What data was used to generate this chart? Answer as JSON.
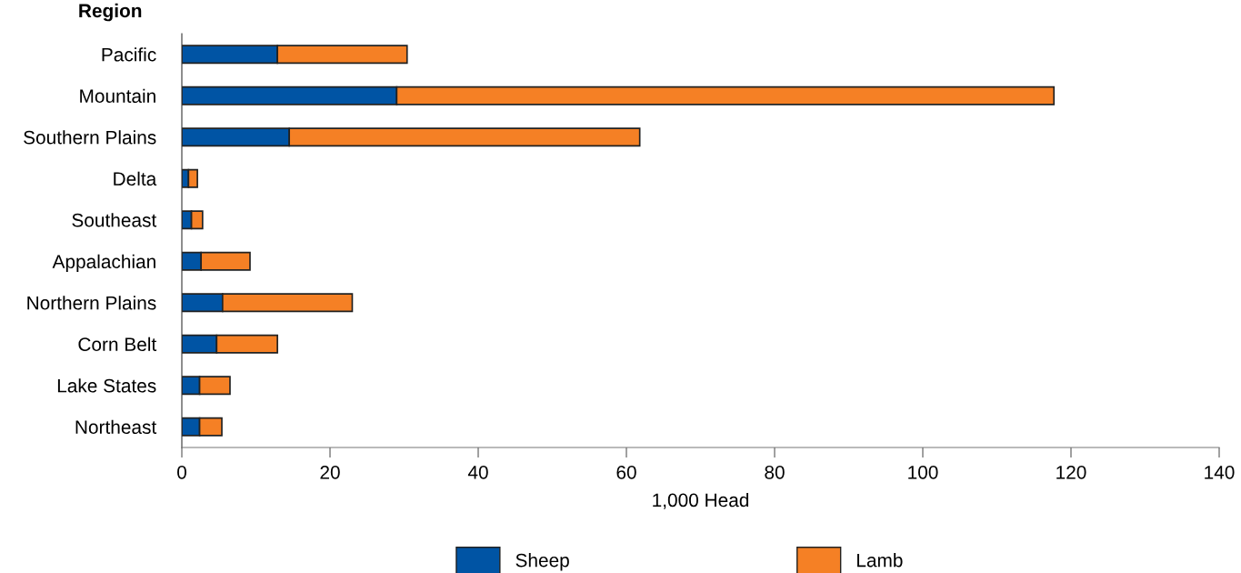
{
  "chart_data": {
    "type": "bar",
    "orientation": "horizontal",
    "stacked": true,
    "ylabel": "Region",
    "xlabel": "1,000 Head",
    "categories": [
      "Pacific",
      "Mountain",
      "Southern Plains",
      "Delta",
      "Southeast",
      "Appalachian",
      "Northern Plains",
      "Corn Belt",
      "Lake States",
      "Northeast"
    ],
    "series": [
      {
        "name": "Sheep",
        "color": "#0054a4",
        "values": [
          12.9,
          29.0,
          14.5,
          0.9,
          1.3,
          2.6,
          5.5,
          4.7,
          2.4,
          2.4
        ]
      },
      {
        "name": "Lamb",
        "color": "#f58025",
        "values": [
          17.5,
          88.7,
          47.3,
          1.2,
          1.5,
          6.6,
          17.5,
          8.2,
          4.1,
          3.0
        ]
      }
    ],
    "xlim": [
      0,
      140
    ],
    "xticks": [
      0,
      20,
      40,
      60,
      80,
      100,
      120,
      140
    ],
    "grid": false,
    "legend": "bottom"
  }
}
